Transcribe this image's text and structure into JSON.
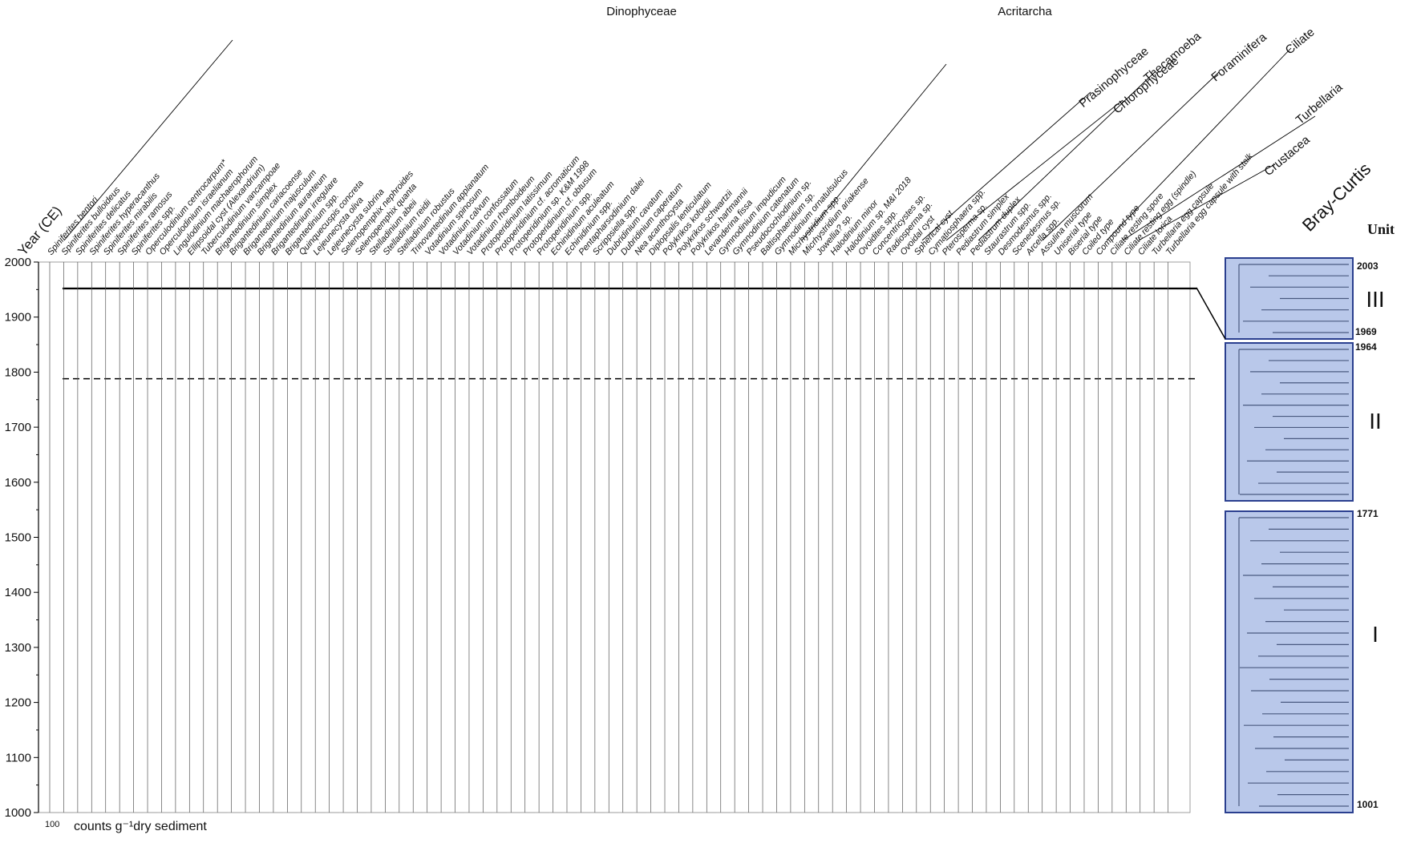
{
  "axis": {
    "title": "Year (CE)",
    "ticks": [
      1000,
      1100,
      1200,
      1300,
      1400,
      1500,
      1600,
      1700,
      1800,
      1900,
      2000
    ],
    "zone_lines": [
      1952,
      1788
    ]
  },
  "groups": [
    "Dinophyceae",
    "Acritarcha",
    "Prasinophyceae",
    "Chlorophyceae",
    "Thecamoeba",
    "Foraminifera",
    "Ciliate",
    "Turbellaria",
    "Crustacea"
  ],
  "taxa": [
    "Spiniferites bentori",
    "Spiniferites bulloideus",
    "Spiniferites delicatus",
    "Spiniferites hyperacanthus",
    "Spiniferites mirabilis",
    "Spiniferites ramosus",
    "Spiniferites spp.",
    "Operculodinium centrocarpum*",
    "Operculodinium israelianum",
    "Lingulodinium machaerophorum",
    "Ellipsoidal cyst (Alexandrium)",
    "Tuberculodinium vancampoae",
    "Brigantedinium simplex",
    "Brigantedinium cariacoense",
    "Brigantedinium majusculum",
    "Brigantedinium auranteum",
    "Brigantedinium irregulare",
    "Brigantedinium spp.",
    "Quinquecuspis concreta",
    "Lejeunecysta oliva",
    "Lejeunecysta subrina",
    "Selenopemphix nephroides",
    "Selenopemphix quanta",
    "Stelladinium abeii",
    "Stelladinium reidii",
    "Stelladinium robustus",
    "Trinovantedinium applanatum",
    "Votadinium spinosum",
    "Votadinium calvum",
    "Votadinium confossatum",
    "Votadinium rhomboideum",
    "Protoperidinium latissimum",
    "Protoperidinium cf. acromaticum",
    "Protoperidinium sp. K&M 1998",
    "Protoperidinium cf. obtusum",
    "Protoperidinium spp.",
    "Echinidinium aculeatum",
    "Echinidinium spp.",
    "Pentapharsodinium dalei",
    "Scrippsiella spp.",
    "Dubridinium cavatum",
    "Dubridinium caperatum",
    "Nea acanthocysta",
    "Diplopsalis lenticulatum",
    "Polykrikos kofoidii",
    "Polykrikos schwartzii",
    "Polykrikos hartmannii",
    "Levanderina fissa",
    "Gymnodinium impudicum",
    "Gymnodinium catenatum",
    "Pseudocochlodinium sp.",
    "Baltisphaeridium sp.",
    "Gymnodinium ornatulsulcus",
    "Micrhystridium spp.",
    "Micrhystridium ariakense",
    "Jowellia? sp.",
    "Halodinium minor",
    "Halodinium sp. M&I 2018",
    "Ovoidites spp.",
    "Concentricystes sp.",
    "Radiosperma sp.",
    "Ovoidal cyst",
    "Spherical cyst",
    "Cymatiosphaera spp.",
    "Pterosperma sp.",
    "Pediastrum simplex",
    "Pediastrum duplex",
    "Staurastrum spp.",
    "Desmodesmus spp.",
    "Scenedesmus sp.",
    "Arcella spp.",
    "Assulina muscorum",
    "Uniserial type",
    "Biserial type",
    "Coiled type",
    "Compound type",
    "Ciliate resting spore",
    "Ciliate resting egg (spindle)",
    "Ciliate lorica",
    "Turbellaria egg capsule",
    "Turbellaria egg capsule with stalk"
  ],
  "cluster": {
    "title": "Bray-Curtis",
    "unit_header": "Unit",
    "units": [
      "III",
      "II",
      "I"
    ],
    "bounds": [
      "2003",
      "1969",
      "1964",
      "1771",
      "1001"
    ]
  },
  "footer": {
    "scale": "100",
    "unit": "counts g⁻¹dry sediment"
  }
}
